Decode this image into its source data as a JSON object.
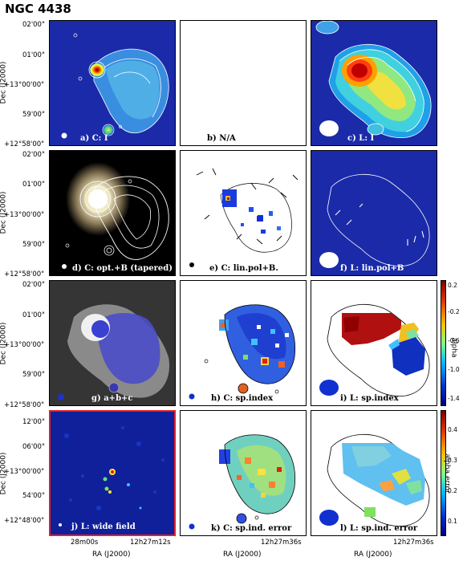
{
  "title": "NGC 4438",
  "panels": {
    "a": "a) C: I",
    "b": "b) N/A",
    "c": "c) L: I",
    "d": "d) C: opt.+B (tapered)",
    "e": "e) C: lin.pol+B.",
    "f": "f) L: lin.pol+B",
    "g": "g) a+b+c",
    "h": "h) C: sp.index",
    "i": "i) L: sp.index",
    "j": "j) L: wide field",
    "k": "k) C: sp.ind. error",
    "l": "l) L: sp.ind. error"
  },
  "axes": {
    "dec_label": "Dec (J2000)",
    "ra_label": "RA (J2000)",
    "dec_ticks_main": [
      "02'00\"",
      "01'00\"",
      "+13°00'00\"",
      "59'00\"",
      "+12°58'00\""
    ],
    "dec_ticks_wide": [
      "12'00\"",
      "06'00\"",
      "+13°00'00\"",
      "54'00\"",
      "+12°48'00\""
    ],
    "ra_ticks_wide": [
      "28m00s",
      "12h27m12s"
    ],
    "ra_ticks_main": [
      "12h27m36s"
    ]
  },
  "colorbars": {
    "alpha": {
      "label": "alpha",
      "ticks": [
        "0.2",
        "-0.2",
        "-0.6",
        "-1.0",
        "-1.4"
      ]
    },
    "alpha_error": {
      "label": "alpha error",
      "ticks": [
        "0.4",
        "0.3",
        "0.2",
        "0.1"
      ]
    }
  },
  "colors": {
    "wide_field_border": "#e0202a",
    "background_blue": "#1a2a9a"
  }
}
